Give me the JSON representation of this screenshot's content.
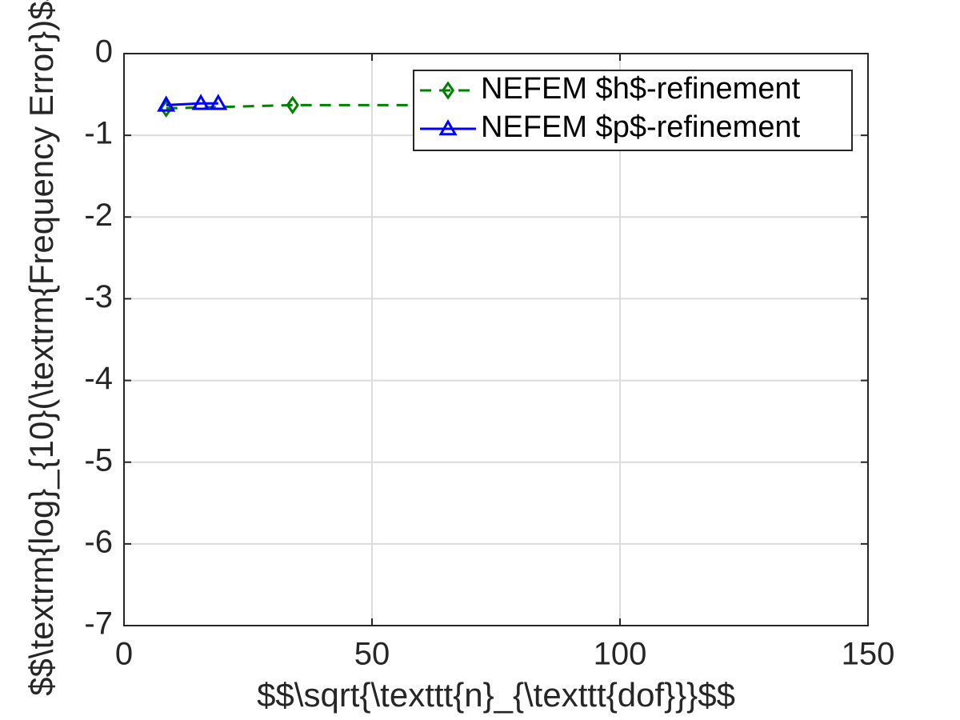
{
  "chart_data": {
    "type": "line",
    "xlabel": "$$\\sqrt{\\texttt{n}_{\\texttt{dof}}}$$",
    "ylabel": "$$\\textrm{log}_{10}(\\textrm{Frequency Error})$$",
    "xlim": [
      0,
      150
    ],
    "xticks": [
      0,
      50,
      100,
      150
    ],
    "ylim": [
      -7,
      0
    ],
    "yticks": [
      -7,
      -6,
      -5,
      -4,
      -3,
      -2,
      -1,
      0
    ],
    "grid": true,
    "legend": "northeast",
    "series": [
      {
        "name": "NEFEM $h$-refinement",
        "color": "#008000",
        "dash": "dashed",
        "marker": "diamond",
        "x": [
          8.5,
          34,
          65
        ],
        "values": [
          -0.67,
          -0.63,
          -0.63
        ]
      },
      {
        "name": "NEFEM $p$-refinement",
        "color": "#0000ff",
        "dash": "solid",
        "marker": "triangle",
        "x": [
          8.5,
          15.5,
          19
        ],
        "values": [
          -0.63,
          -0.61,
          -0.61
        ]
      }
    ]
  }
}
